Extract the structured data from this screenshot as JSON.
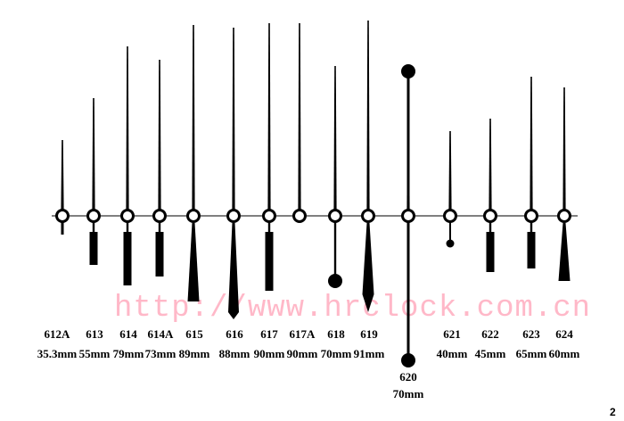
{
  "watermark": "http://www.hrclock.com.cn",
  "page_number": "2",
  "hands": [
    {
      "model": "612A",
      "length": "35.3mm",
      "tail": "tiny"
    },
    {
      "model": "613",
      "length": "55mm",
      "tail": "block"
    },
    {
      "model": "614",
      "length": "79mm",
      "tail": "block"
    },
    {
      "model": "614A",
      "length": "73mm",
      "tail": "block"
    },
    {
      "model": "615",
      "length": "89mm",
      "tail": "wedge"
    },
    {
      "model": "616",
      "length": "88mm",
      "tail": "diamond"
    },
    {
      "model": "617",
      "length": "90mm",
      "tail": "block"
    },
    {
      "model": "617A",
      "length": "90mm",
      "tail": "none"
    },
    {
      "model": "618",
      "length": "70mm",
      "tail": "ball"
    },
    {
      "model": "619",
      "length": "91mm",
      "tail": "spike"
    },
    {
      "model": "620",
      "length": "70mm",
      "tail": "doubleball"
    },
    {
      "model": "621",
      "length": "40mm",
      "tail": "smallball"
    },
    {
      "model": "622",
      "length": "45mm",
      "tail": "block"
    },
    {
      "model": "623",
      "length": "65mm",
      "tail": "block"
    },
    {
      "model": "624",
      "length": "60mm",
      "tail": "wedge"
    }
  ]
}
